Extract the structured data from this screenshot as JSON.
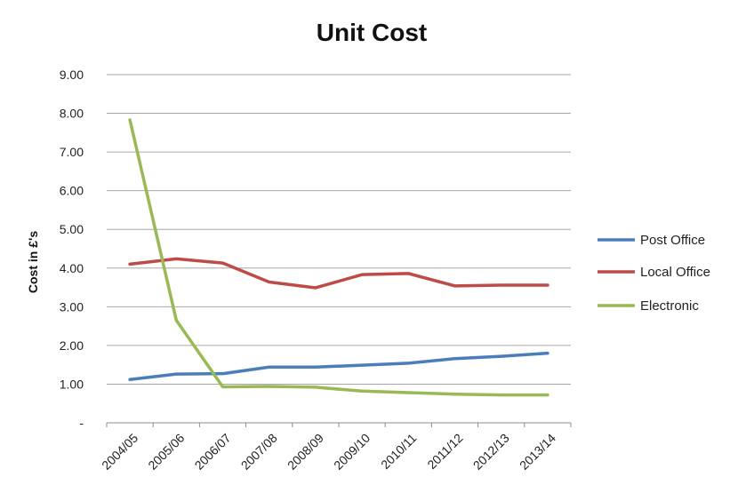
{
  "chart_data": {
    "type": "line",
    "title": "Unit Cost",
    "xlabel": "",
    "ylabel": "Cost in £'s",
    "categories": [
      "2004/05",
      "2005/06",
      "2006/07",
      "2007/08",
      "2008/09",
      "2009/10",
      "2010/11",
      "2011/12",
      "2012/13",
      "2013/14"
    ],
    "ylim": [
      0,
      9
    ],
    "y_ticks": [
      {
        "value": 0,
        "label": "-"
      },
      {
        "value": 1,
        "label": "1.00"
      },
      {
        "value": 2,
        "label": "2.00"
      },
      {
        "value": 3,
        "label": "3.00"
      },
      {
        "value": 4,
        "label": "4.00"
      },
      {
        "value": 5,
        "label": "5.00"
      },
      {
        "value": 6,
        "label": "6.00"
      },
      {
        "value": 7,
        "label": "7.00"
      },
      {
        "value": 8,
        "label": "8.00"
      },
      {
        "value": 9,
        "label": "9.00"
      }
    ],
    "grid": true,
    "legend": "right",
    "series": [
      {
        "name": "Post Office",
        "color": "#4a7ebb",
        "values": [
          1.12,
          1.26,
          1.27,
          1.44,
          1.44,
          1.49,
          1.54,
          1.66,
          1.72,
          1.8
        ]
      },
      {
        "name": "Local Office",
        "color": "#be4b48",
        "values": [
          4.1,
          4.24,
          4.13,
          3.64,
          3.49,
          3.83,
          3.86,
          3.54,
          3.56,
          3.56
        ]
      },
      {
        "name": "Electronic",
        "color": "#98b954",
        "values": [
          7.83,
          2.65,
          0.93,
          0.94,
          0.92,
          0.82,
          0.78,
          0.74,
          0.72,
          0.72
        ]
      }
    ]
  }
}
